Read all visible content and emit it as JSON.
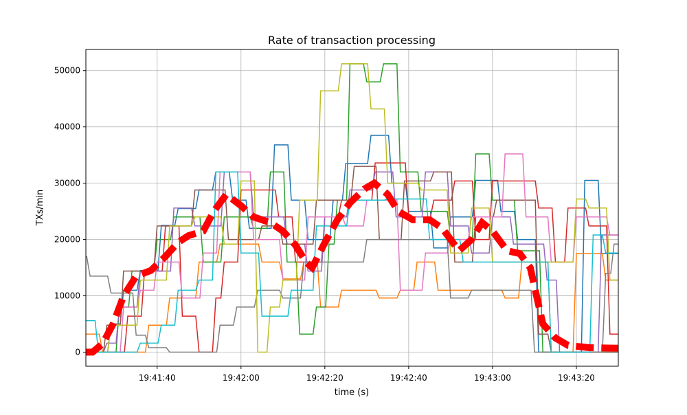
{
  "chart_data": {
    "type": "line",
    "title": "Rate of transaction processing",
    "xlabel": "time (s)",
    "ylabel": "TXs/min",
    "xlim": [
      "19:41:23",
      "19:43:30"
    ],
    "ylim": [
      -2500,
      53750
    ],
    "xticks": [
      "19:41:40",
      "19:42:00",
      "19:42:20",
      "19:42:40",
      "19:43:00",
      "19:43:20"
    ],
    "yticks": [
      0,
      10000,
      20000,
      30000,
      40000,
      50000
    ],
    "grid": true,
    "series": [
      {
        "color": "#1f77b4",
        "points": [
          [
            "19:41:23",
            0
          ],
          [
            "19:41:29",
            5000
          ],
          [
            "19:41:32",
            11000
          ],
          [
            "19:41:36",
            14500
          ],
          [
            "19:41:41",
            22500
          ],
          [
            "19:41:45",
            25500
          ],
          [
            "19:41:50",
            28800
          ],
          [
            "19:41:54",
            32000
          ],
          [
            "19:41:58",
            27000
          ],
          [
            "19:42:02",
            22000
          ],
          [
            "19:42:08",
            36800
          ],
          [
            "19:42:12",
            27000
          ],
          [
            "19:42:16",
            20000
          ],
          [
            "19:42:22",
            27000
          ],
          [
            "19:42:25",
            33500
          ],
          [
            "19:42:31",
            38500
          ],
          [
            "19:42:36",
            30000
          ],
          [
            "19:42:40",
            25000
          ],
          [
            "19:42:46",
            18500
          ],
          [
            "19:42:50",
            24000
          ],
          [
            "19:42:56",
            30500
          ],
          [
            "19:43:02",
            25000
          ],
          [
            "19:43:06",
            20000
          ],
          [
            "19:43:11",
            0
          ],
          [
            "19:43:22",
            30500
          ],
          [
            "19:43:26",
            17500
          ]
        ]
      },
      {
        "color": "#ff7f0e",
        "points": [
          [
            "19:41:23",
            3200
          ],
          [
            "19:41:27",
            0
          ],
          [
            "19:41:38",
            4800
          ],
          [
            "19:41:43",
            9600
          ],
          [
            "19:41:50",
            16000
          ],
          [
            "19:41:55",
            19200
          ],
          [
            "19:42:05",
            16000
          ],
          [
            "19:42:10",
            13000
          ],
          [
            "19:42:15",
            16000
          ],
          [
            "19:42:19",
            8000
          ],
          [
            "19:42:24",
            11000
          ],
          [
            "19:42:33",
            9600
          ],
          [
            "19:42:38",
            11000
          ],
          [
            "19:42:42",
            16000
          ],
          [
            "19:42:47",
            11000
          ],
          [
            "19:43:03",
            9600
          ],
          [
            "19:43:07",
            16000
          ],
          [
            "19:43:14",
            0
          ],
          [
            "19:43:20",
            17500
          ],
          [
            "19:43:27",
            12800
          ]
        ]
      },
      {
        "color": "#2ca02c",
        "points": [
          [
            "19:41:23",
            0
          ],
          [
            "19:41:31",
            8000
          ],
          [
            "19:41:34",
            14400
          ],
          [
            "19:41:40",
            20000
          ],
          [
            "19:41:44",
            24000
          ],
          [
            "19:41:51",
            16000
          ],
          [
            "19:41:56",
            24000
          ],
          [
            "19:42:03",
            22000
          ],
          [
            "19:42:07",
            32000
          ],
          [
            "19:42:11",
            16000
          ],
          [
            "19:42:14",
            3200
          ],
          [
            "19:42:18",
            8000
          ],
          [
            "19:42:21",
            19200
          ],
          [
            "19:42:23",
            27000
          ],
          [
            "19:42:26",
            51200
          ],
          [
            "19:42:30",
            48000
          ],
          [
            "19:42:34",
            51200
          ],
          [
            "19:42:38",
            32000
          ],
          [
            "19:42:43",
            25000
          ],
          [
            "19:42:50",
            20000
          ],
          [
            "19:42:56",
            35200
          ],
          [
            "19:43:00",
            27000
          ],
          [
            "19:43:06",
            18000
          ],
          [
            "19:43:12",
            0
          ]
        ]
      },
      {
        "color": "#d62728",
        "points": [
          [
            "19:41:23",
            0
          ],
          [
            "19:41:33",
            6400
          ],
          [
            "19:41:37",
            14400
          ],
          [
            "19:41:42",
            22400
          ],
          [
            "19:41:46",
            6400
          ],
          [
            "19:41:50",
            0
          ],
          [
            "19:41:54",
            9600
          ],
          [
            "19:41:56",
            16000
          ],
          [
            "19:42:00",
            28800
          ],
          [
            "19:42:09",
            24000
          ],
          [
            "19:42:13",
            16000
          ],
          [
            "19:42:20",
            24000
          ],
          [
            "19:42:24",
            27000
          ],
          [
            "19:42:32",
            33600
          ],
          [
            "19:42:40",
            24000
          ],
          [
            "19:42:46",
            27000
          ],
          [
            "19:42:51",
            30400
          ],
          [
            "19:42:56",
            20000
          ],
          [
            "19:43:00",
            30400
          ],
          [
            "19:43:11",
            25600
          ],
          [
            "19:43:15",
            16000
          ],
          [
            "19:43:18",
            25600
          ],
          [
            "19:43:23",
            22400
          ],
          [
            "19:43:28",
            3200
          ]
        ]
      },
      {
        "color": "#9467bd",
        "points": [
          [
            "19:41:23",
            0
          ],
          [
            "19:41:28",
            1600
          ],
          [
            "19:41:31",
            8000
          ],
          [
            "19:41:36",
            14400
          ],
          [
            "19:41:44",
            25600
          ],
          [
            "19:41:49",
            22400
          ],
          [
            "19:41:56",
            32000
          ],
          [
            "19:42:03",
            24000
          ],
          [
            "19:42:11",
            19200
          ],
          [
            "19:42:16",
            14400
          ],
          [
            "19:42:20",
            24000
          ],
          [
            "19:42:26",
            28800
          ],
          [
            "19:42:32",
            32000
          ],
          [
            "19:42:37",
            24000
          ],
          [
            "19:42:44",
            32000
          ],
          [
            "19:42:50",
            22400
          ],
          [
            "19:42:55",
            17600
          ],
          [
            "19:43:00",
            24000
          ],
          [
            "19:43:05",
            19200
          ],
          [
            "19:43:13",
            12800
          ],
          [
            "19:43:16",
            0
          ],
          [
            "19:43:26",
            20800
          ]
        ]
      },
      {
        "color": "#8c564b",
        "points": [
          [
            "19:41:23",
            0
          ],
          [
            "19:41:28",
            4800
          ],
          [
            "19:41:32",
            14400
          ],
          [
            "19:41:40",
            22400
          ],
          [
            "19:41:49",
            28800
          ],
          [
            "19:41:57",
            20000
          ],
          [
            "19:42:05",
            22400
          ],
          [
            "19:42:10",
            19200
          ],
          [
            "19:42:18",
            27000
          ],
          [
            "19:42:27",
            33000
          ],
          [
            "19:42:33",
            20000
          ],
          [
            "19:42:39",
            30400
          ],
          [
            "19:42:46",
            32000
          ],
          [
            "19:42:51",
            16000
          ],
          [
            "19:42:56",
            24000
          ],
          [
            "19:43:01",
            27000
          ],
          [
            "19:43:11",
            3200
          ],
          [
            "19:43:14",
            0
          ]
        ]
      },
      {
        "color": "#e377c2",
        "points": [
          [
            "19:41:23",
            0
          ],
          [
            "19:41:32",
            8000
          ],
          [
            "19:41:36",
            11000
          ],
          [
            "19:41:40",
            16000
          ],
          [
            "19:41:46",
            9600
          ],
          [
            "19:41:51",
            17600
          ],
          [
            "19:41:55",
            32000
          ],
          [
            "19:42:03",
            20000
          ],
          [
            "19:42:10",
            12800
          ],
          [
            "19:42:16",
            24000
          ],
          [
            "19:42:25",
            22400
          ],
          [
            "19:42:30",
            27000
          ],
          [
            "19:42:38",
            11000
          ],
          [
            "19:42:44",
            17600
          ],
          [
            "19:42:50",
            20000
          ],
          [
            "19:42:55",
            24000
          ],
          [
            "19:43:03",
            35200
          ],
          [
            "19:43:08",
            24000
          ],
          [
            "19:43:14",
            16000
          ],
          [
            "19:43:20",
            24000
          ],
          [
            "19:43:28",
            20800
          ]
        ]
      },
      {
        "color": "#7f7f7f",
        "points": [
          [
            "19:41:23",
            17000
          ],
          [
            "19:41:24",
            13500
          ],
          [
            "19:41:29",
            10500
          ],
          [
            "19:41:35",
            3000
          ],
          [
            "19:41:38",
            800
          ],
          [
            "19:41:43",
            0
          ],
          [
            "19:41:55",
            4800
          ],
          [
            "19:41:59",
            8000
          ],
          [
            "19:42:04",
            11000
          ],
          [
            "19:42:10",
            9600
          ],
          [
            "19:42:15",
            16000
          ],
          [
            "19:42:30",
            20000
          ],
          [
            "19:42:50",
            9600
          ],
          [
            "19:42:55",
            11000
          ],
          [
            "19:43:10",
            0
          ],
          [
            "19:43:27",
            14000
          ],
          [
            "19:43:29",
            19200
          ]
        ]
      },
      {
        "color": "#bcbd22",
        "points": [
          [
            "19:41:23",
            0
          ],
          [
            "19:41:29",
            4800
          ],
          [
            "19:41:36",
            12800
          ],
          [
            "19:41:43",
            22400
          ],
          [
            "19:41:49",
            24000
          ],
          [
            "19:41:56",
            19200
          ],
          [
            "19:42:00",
            30400
          ],
          [
            "19:42:04",
            0
          ],
          [
            "19:42:07",
            8000
          ],
          [
            "19:42:10",
            12800
          ],
          [
            "19:42:14",
            27000
          ],
          [
            "19:42:19",
            46400
          ],
          [
            "19:42:24",
            51200
          ],
          [
            "19:42:31",
            43200
          ],
          [
            "19:42:35",
            30000
          ],
          [
            "19:42:43",
            28800
          ],
          [
            "19:42:50",
            17600
          ],
          [
            "19:42:55",
            25600
          ],
          [
            "19:43:00",
            16000
          ],
          [
            "19:43:15",
            16000
          ],
          [
            "19:43:20",
            27200
          ],
          [
            "19:43:23",
            25600
          ],
          [
            "19:43:28",
            12800
          ]
        ]
      },
      {
        "color": "#17becf",
        "points": [
          [
            "19:41:23",
            5600
          ],
          [
            "19:41:26",
            0
          ],
          [
            "19:41:36",
            1600
          ],
          [
            "19:41:41",
            4800
          ],
          [
            "19:41:45",
            11000
          ],
          [
            "19:41:50",
            12800
          ],
          [
            "19:41:54",
            32000
          ],
          [
            "19:42:00",
            17600
          ],
          [
            "19:42:05",
            6400
          ],
          [
            "19:42:12",
            11000
          ],
          [
            "19:42:18",
            22400
          ],
          [
            "19:42:26",
            27000
          ],
          [
            "19:42:35",
            27200
          ],
          [
            "19:42:45",
            20000
          ],
          [
            "19:42:53",
            16000
          ],
          [
            "19:43:00",
            16000
          ],
          [
            "19:43:14",
            0
          ],
          [
            "19:43:24",
            20800
          ],
          [
            "19:43:27",
            17600
          ]
        ]
      }
    ],
    "mean_series": {
      "color": "#ff0000",
      "style": "dashed",
      "points": [
        [
          "19:41:23",
          0
        ],
        [
          "19:41:24.6",
          0
        ],
        [
          "19:41:27",
          1500
        ],
        [
          "19:41:29.5",
          5000
        ],
        [
          "19:41:32",
          10000
        ],
        [
          "19:41:35",
          13500
        ],
        [
          "19:41:38.5",
          14500
        ],
        [
          "19:41:42",
          17000
        ],
        [
          "19:41:45",
          19500
        ],
        [
          "19:41:47.5",
          20700
        ],
        [
          "19:41:51",
          21500
        ],
        [
          "19:41:53.5",
          25000
        ],
        [
          "19:41:56.5",
          28000
        ],
        [
          "19:42:00",
          26000
        ],
        [
          "19:42:03",
          24000
        ],
        [
          "19:42:07",
          23000
        ],
        [
          "19:42:10",
          21500
        ],
        [
          "19:42:13",
          19000
        ],
        [
          "19:42:15.5",
          16000
        ],
        [
          "19:42:17",
          15000
        ],
        [
          "19:42:19.7",
          19000
        ],
        [
          "19:42:23",
          23500
        ],
        [
          "19:42:26",
          26500
        ],
        [
          "19:42:29.5",
          29000
        ],
        [
          "19:42:31.8",
          30000
        ],
        [
          "19:42:35",
          28000
        ],
        [
          "19:42:37.5",
          25000
        ],
        [
          "19:42:41",
          23500
        ],
        [
          "19:42:45",
          23500
        ],
        [
          "19:42:48",
          22000
        ],
        [
          "19:42:52",
          18000
        ],
        [
          "19:42:55",
          20000
        ],
        [
          "19:42:57.5",
          23000
        ],
        [
          "19:43:00",
          21500
        ],
        [
          "19:43:03.5",
          18000
        ],
        [
          "19:43:06.5",
          17500
        ],
        [
          "19:43:09",
          15000
        ],
        [
          "19:43:10.5",
          10000
        ],
        [
          "19:43:12",
          5000
        ],
        [
          "19:43:15",
          2500
        ],
        [
          "19:43:18",
          1200
        ],
        [
          "19:43:23",
          800
        ],
        [
          "19:43:30",
          700
        ]
      ]
    }
  }
}
